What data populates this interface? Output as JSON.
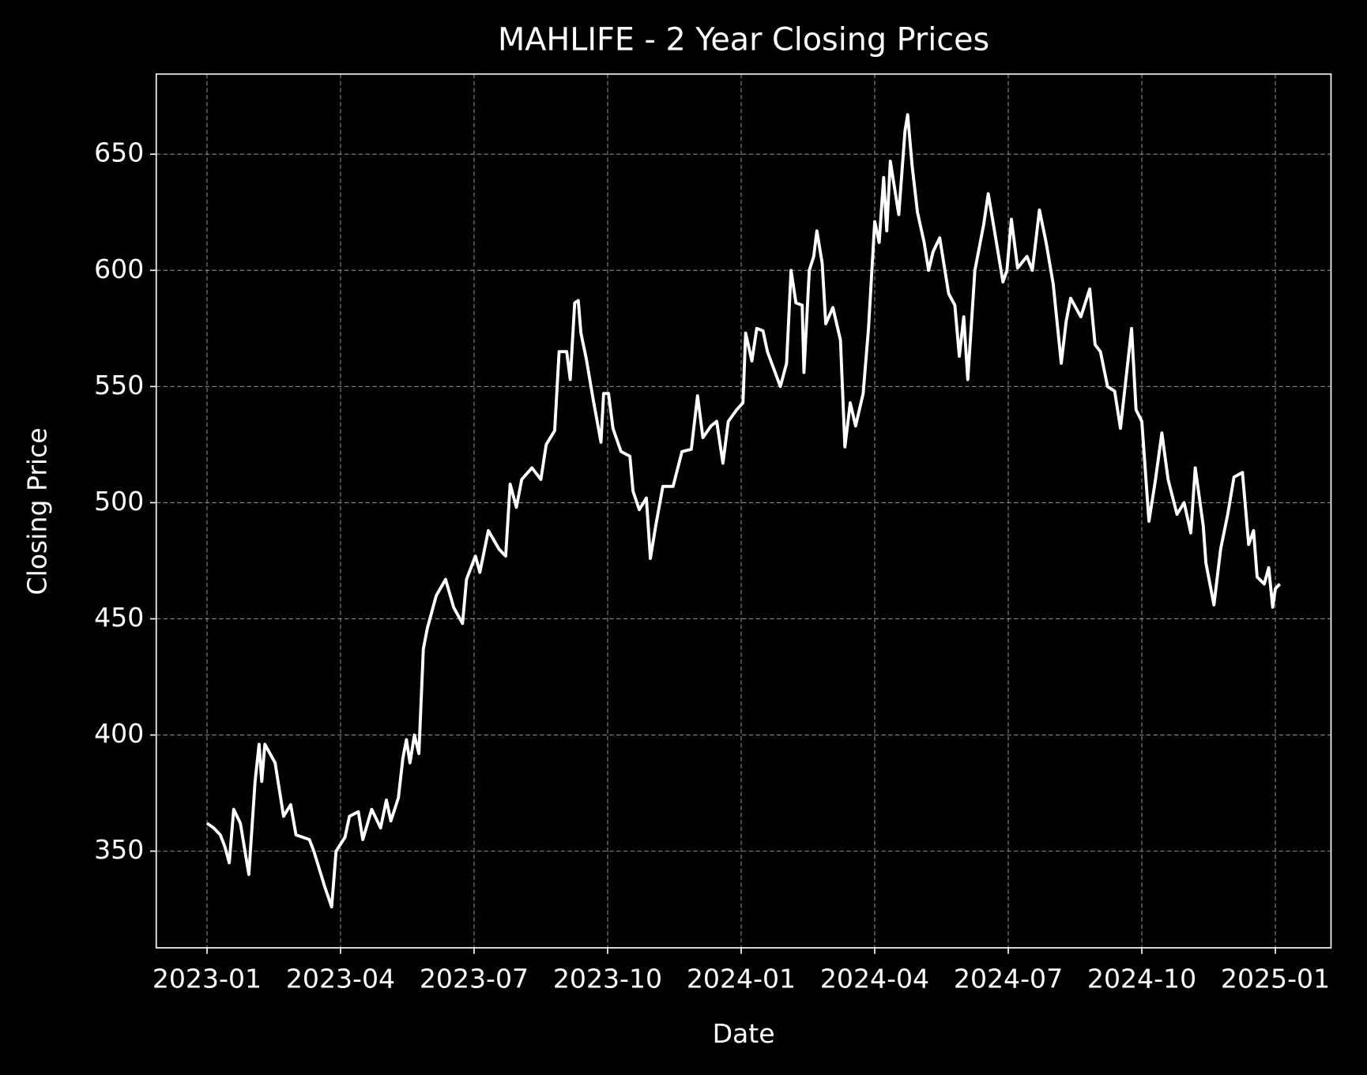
{
  "chart_data": {
    "type": "line",
    "title": "MAHLIFE - 2 Year Closing Prices",
    "x_label": "Date",
    "y_label": "Closing Price",
    "color": "#ffffff",
    "grid": true,
    "xlim": [
      -1.14,
      25.25
    ],
    "xticks": [
      {
        "value": 0,
        "label": "2023-01"
      },
      {
        "value": 3,
        "label": "2023-04"
      },
      {
        "value": 6,
        "label": "2023-07"
      },
      {
        "value": 9,
        "label": "2023-10"
      },
      {
        "value": 12,
        "label": "2024-01"
      },
      {
        "value": 15,
        "label": "2024-04"
      },
      {
        "value": 18,
        "label": "2024-07"
      },
      {
        "value": 21,
        "label": "2024-10"
      },
      {
        "value": 24,
        "label": "2025-01"
      }
    ],
    "ylim": [
      308.4,
      684.5
    ],
    "yticks": [
      350,
      400,
      450,
      500,
      550,
      600,
      650
    ],
    "x": [
      0,
      0.15,
      0.3,
      0.4,
      0.5,
      0.6,
      0.75,
      0.94,
      1.08,
      1.17,
      1.23,
      1.3,
      1.53,
      1.72,
      1.88,
      2.0,
      2.3,
      2.4,
      2.64,
      2.8,
      2.9,
      3.1,
      3.2,
      3.4,
      3.5,
      3.7,
      3.9,
      4.03,
      4.13,
      4.3,
      4.4,
      4.48,
      4.56,
      4.66,
      4.76,
      4.86,
      4.95,
      5.15,
      5.36,
      5.54,
      5.74,
      5.83,
      6.03,
      6.13,
      6.32,
      6.56,
      6.71,
      6.81,
      6.95,
      7.07,
      7.3,
      7.5,
      7.62,
      7.81,
      7.91,
      8.08,
      8.16,
      8.26,
      8.34,
      8.4,
      8.52,
      8.67,
      8.85,
      8.91,
      9.02,
      9.12,
      9.3,
      9.5,
      9.57,
      9.71,
      9.87,
      9.96,
      10.08,
      10.24,
      10.47,
      10.67,
      10.88,
      11.02,
      11.14,
      11.32,
      11.45,
      11.59,
      11.71,
      11.9,
      12.04,
      12.1,
      12.24,
      12.35,
      12.49,
      12.59,
      12.88,
      13.02,
      13.12,
      13.23,
      13.37,
      13.41,
      13.53,
      13.63,
      13.7,
      13.82,
      13.9,
      14.06,
      14.23,
      14.33,
      14.45,
      14.57,
      14.74,
      14.86,
      15.0,
      15.1,
      15.2,
      15.27,
      15.35,
      15.54,
      15.68,
      15.74,
      15.84,
      15.96,
      16.11,
      16.21,
      16.31,
      16.46,
      16.66,
      16.8,
      16.9,
      17.0,
      17.09,
      17.25,
      17.45,
      17.55,
      17.69,
      17.88,
      17.97,
      18.07,
      18.21,
      18.42,
      18.54,
      18.7,
      18.85,
      19.01,
      19.19,
      19.3,
      19.4,
      19.63,
      19.83,
      19.95,
      20.07,
      20.23,
      20.39,
      20.52,
      20.77,
      20.87,
      21.0,
      21.16,
      21.3,
      21.45,
      21.59,
      21.79,
      21.95,
      22.1,
      22.2,
      22.38,
      22.44,
      22.62,
      22.77,
      22.93,
      23.07,
      23.26,
      23.4,
      23.51,
      23.59,
      23.75,
      23.85,
      23.94,
      24.0,
      24.1
    ],
    "values": [
      362,
      360,
      357,
      352,
      345,
      368,
      362,
      340,
      380,
      396,
      380,
      396,
      388,
      365,
      370,
      357,
      355,
      350,
      335,
      326,
      350,
      356,
      365,
      367,
      355,
      368,
      360,
      372,
      363,
      373,
      390,
      398,
      388,
      400,
      392,
      437,
      446,
      460,
      467,
      455,
      448,
      467,
      477,
      470,
      488,
      480,
      477,
      508,
      498,
      510,
      515,
      510,
      525,
      531,
      565,
      565,
      553,
      586,
      587,
      573,
      562,
      545,
      526,
      547,
      547,
      532,
      522,
      520,
      505,
      497,
      502,
      476,
      490,
      507,
      507,
      522,
      523,
      546,
      528,
      533,
      535,
      517,
      535,
      540,
      543,
      573,
      561,
      575,
      574,
      565,
      550,
      560,
      600,
      586,
      585,
      556,
      600,
      606,
      617,
      603,
      577,
      584,
      570,
      524,
      543,
      533,
      547,
      575,
      621,
      612,
      640,
      617,
      647,
      624,
      660,
      667,
      645,
      625,
      612,
      600,
      608,
      614,
      590,
      585,
      563,
      580,
      553,
      600,
      620,
      633,
      617,
      595,
      600,
      622,
      601,
      606,
      600,
      626,
      612,
      594,
      560,
      578,
      588,
      580,
      592,
      568,
      565,
      550,
      548,
      532,
      575,
      540,
      535,
      492,
      509,
      530,
      510,
      495,
      500,
      487,
      515,
      490,
      474,
      456,
      480,
      495,
      511,
      513,
      482,
      488,
      468,
      465,
      472,
      455,
      463,
      465
    ]
  }
}
